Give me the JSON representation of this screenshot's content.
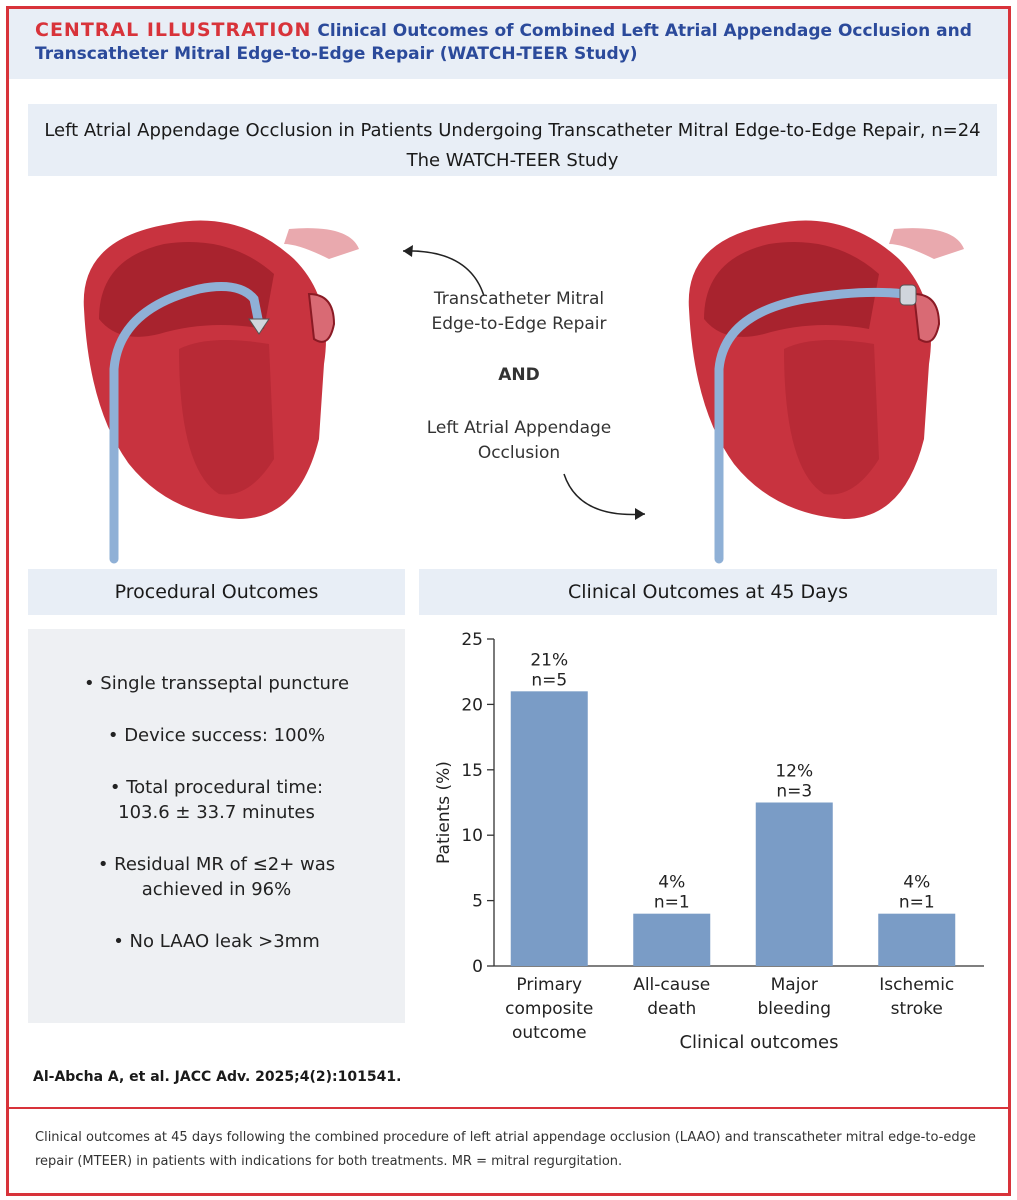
{
  "header": {
    "label": "CENTRAL ILLUSTRATION",
    "title": "Clinical Outcomes of Combined Left Atrial Appendage Occlusion and Transcatheter Mitral Edge-to-Edge Repair (WATCH-TEER Study)"
  },
  "study": {
    "title_line1": "Left Atrial Appendage Occlusion in Patients Undergoing Transcatheter Mitral Edge-to-Edge Repair, n=24",
    "title_line2": "The WATCH-TEER Study"
  },
  "procedure_text": {
    "line1": "Transcatheter Mitral",
    "line2": "Edge-to-Edge Repair",
    "and": "AND",
    "line3": "Left Atrial Appendage",
    "line4": "Occlusion"
  },
  "procedural": {
    "heading": "Procedural Outcomes",
    "items": [
      {
        "l1": "• Single transseptal puncture",
        "l2": ""
      },
      {
        "l1": "• Device success: 100%",
        "l2": ""
      },
      {
        "l1": "• Total procedural time:",
        "l2": "103.6 ± 33.7 minutes"
      },
      {
        "l1": "• Residual MR of ≤2+ was",
        "l2": "achieved in 96%"
      },
      {
        "l1": "• No LAAO leak >3mm",
        "l2": ""
      }
    ]
  },
  "clinical": {
    "heading": "Clinical Outcomes at 45 Days"
  },
  "chart_data": {
    "type": "bar",
    "title": "Clinical Outcomes at 45 Days",
    "categories": [
      [
        "Primary",
        "composite",
        "outcome"
      ],
      [
        "All-cause",
        "death"
      ],
      [
        "Major",
        "bleeding"
      ],
      [
        "Ischemic",
        "stroke"
      ]
    ],
    "values": [
      21,
      4,
      12.5,
      4
    ],
    "value_labels": [
      "21%",
      "4%",
      "12%",
      "4%"
    ],
    "n_labels": [
      "n=5",
      "n=1",
      "n=3",
      "n=1"
    ],
    "xlabel": "Clinical outcomes",
    "ylabel": "Patients (%)",
    "ylim": [
      0,
      25
    ],
    "yticks": [
      0,
      5,
      10,
      15,
      20,
      25
    ],
    "bar_color": "#7a9cc6"
  },
  "citation": "Al-Abcha A, et al. JACC Adv. 2025;4(2):101541.",
  "caption": "Clinical outcomes at 45 days following the combined procedure of left atrial appendage occlusion (LAAO) and transcatheter mitral edge-to-edge repair (MTEER) in patients with indications for both treatments. MR = mitral regurgitation.",
  "colors": {
    "accent": "#d8333a",
    "title_blue": "#2b4a9b",
    "panel": "#e8eef6",
    "heart": "#c8333f"
  }
}
